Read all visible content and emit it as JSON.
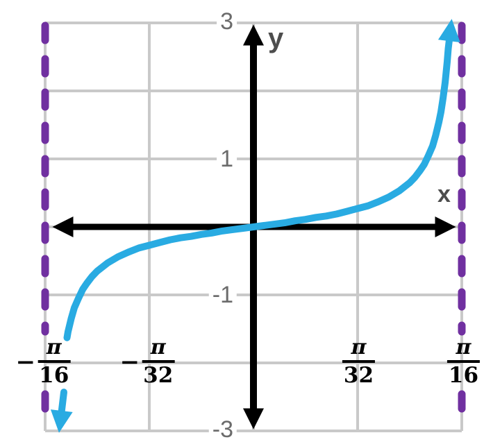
{
  "colors": {
    "curve": "#29ABE2",
    "asymptote": "#7030A0",
    "grid": "#C9C9C9",
    "axis": "#000000",
    "tick_text": "#6B6B6B",
    "axis_letter": "#4D4D4D",
    "fraction_text": "#000000",
    "background": "#FFFFFF"
  },
  "chart_data": {
    "type": "line",
    "title": "",
    "x_axis_label": "x",
    "y_axis_label": "y",
    "x_unit_per_gridline": "pi/32",
    "x_range_units": [
      -2,
      2
    ],
    "y_range": [
      -3,
      3
    ],
    "grid": {
      "x_units": [
        -2,
        -1,
        0,
        1,
        2
      ],
      "y_values": [
        -3,
        -2,
        -1,
        0,
        1,
        2,
        3
      ]
    },
    "y_ticks": [
      {
        "label": "3",
        "value": 3
      },
      {
        "label": "1",
        "value": 1
      },
      {
        "label": "-1",
        "value": -1
      },
      {
        "label": "-3",
        "value": -3
      }
    ],
    "x_ticks": [
      {
        "sign": "−",
        "num": "π",
        "den": "16",
        "value_units": -2
      },
      {
        "sign": "−",
        "num": "π",
        "den": "32",
        "value_units": -1
      },
      {
        "sign": "",
        "num": "π",
        "den": "32",
        "value_units": 1
      },
      {
        "sign": "",
        "num": "π",
        "den": "16",
        "value_units": 2
      }
    ],
    "asymptotes": {
      "x_units": [
        -2,
        2
      ],
      "style": "dashed"
    },
    "curve": {
      "main_points": [
        [
          -1.79,
          -1.63
        ],
        [
          -1.78,
          -1.54
        ],
        [
          -1.75,
          -1.35
        ],
        [
          -1.72,
          -1.19
        ],
        [
          -1.68,
          -1.05
        ],
        [
          -1.64,
          -0.92
        ],
        [
          -1.6,
          -0.83
        ],
        [
          -1.55,
          -0.73
        ],
        [
          -1.5,
          -0.65
        ],
        [
          -1.4,
          -0.53
        ],
        [
          -1.3,
          -0.44
        ],
        [
          -1.2,
          -0.37
        ],
        [
          -1.1,
          -0.31
        ],
        [
          -1.0,
          -0.27
        ],
        [
          -0.9,
          -0.23
        ],
        [
          -0.8,
          -0.19
        ],
        [
          -0.7,
          -0.16
        ],
        [
          -0.6,
          -0.14
        ],
        [
          -0.5,
          -0.11
        ],
        [
          -0.4,
          -0.09
        ],
        [
          -0.3,
          -0.06
        ],
        [
          -0.2,
          -0.04
        ],
        [
          -0.1,
          -0.02
        ],
        [
          0,
          0
        ],
        [
          0.1,
          0.02
        ],
        [
          0.2,
          0.04
        ],
        [
          0.3,
          0.06
        ],
        [
          0.4,
          0.09
        ],
        [
          0.5,
          0.11
        ],
        [
          0.6,
          0.14
        ],
        [
          0.7,
          0.16
        ],
        [
          0.8,
          0.19
        ],
        [
          0.9,
          0.23
        ],
        [
          1.0,
          0.27
        ],
        [
          1.1,
          0.31
        ],
        [
          1.2,
          0.37
        ],
        [
          1.3,
          0.44
        ],
        [
          1.4,
          0.53
        ],
        [
          1.5,
          0.65
        ],
        [
          1.55,
          0.73
        ],
        [
          1.6,
          0.83
        ],
        [
          1.64,
          0.92
        ],
        [
          1.68,
          1.05
        ],
        [
          1.72,
          1.19
        ],
        [
          1.75,
          1.35
        ],
        [
          1.78,
          1.54
        ],
        [
          1.8,
          1.69
        ],
        [
          1.82,
          1.89
        ],
        [
          1.84,
          2.12
        ],
        [
          1.86,
          2.43
        ],
        [
          1.87,
          2.62
        ],
        [
          1.88,
          2.75
        ]
      ],
      "left_tail_points": [
        [
          -1.82,
          -2.43
        ],
        [
          -1.843,
          -2.72
        ]
      ]
    }
  }
}
